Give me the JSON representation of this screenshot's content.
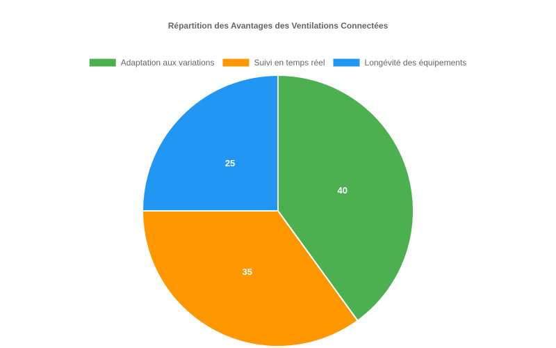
{
  "chart_data": {
    "type": "pie",
    "title": "Répartition des Avantages des Ventilations Connectées",
    "legend_position": "top",
    "categories": [
      "Adaptation aux variations",
      "Suivi en temps réel",
      "Longévité des équipements"
    ],
    "values": [
      40,
      35,
      25
    ],
    "colors": [
      "#4caf50",
      "#ff9800",
      "#2196f3"
    ],
    "data_labels": [
      "40",
      "35",
      "25"
    ],
    "slice_border_color": "#ffffff",
    "start_angle_deg": 0,
    "direction": "clockwise"
  }
}
